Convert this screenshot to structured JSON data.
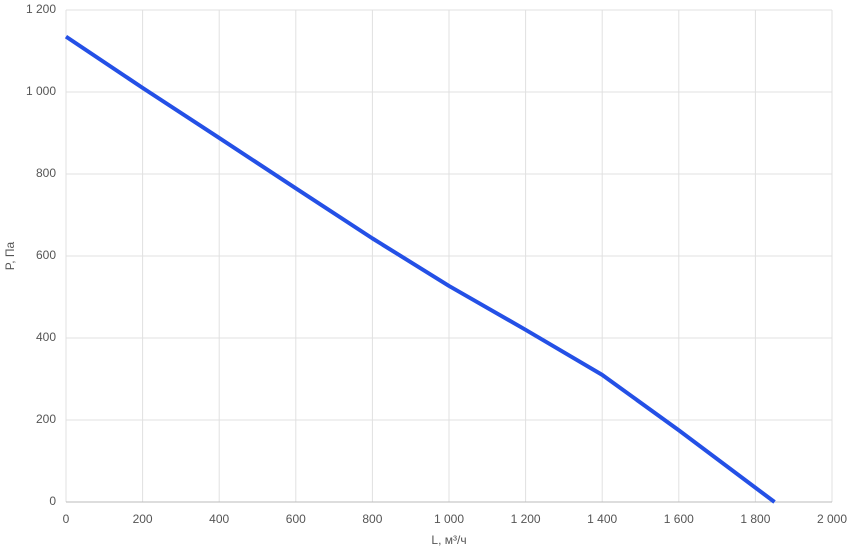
{
  "chart_data": {
    "type": "line",
    "x_label": "L, м³/ч",
    "y_label": "P, Па",
    "x": [
      0,
      200,
      400,
      600,
      800,
      1000,
      1200,
      1400,
      1600,
      1850
    ],
    "series": [
      {
        "name": "P",
        "color": "#2450e6",
        "values": [
          1135,
          1010,
          888,
          765,
          643,
          527,
          420,
          310,
          175,
          0
        ]
      }
    ],
    "xlim": [
      0,
      2000
    ],
    "xticks": [
      0,
      200,
      400,
      600,
      800,
      {
        "value": 1000,
        "label": "1 000"
      },
      {
        "value": 1200,
        "label": "1 200"
      },
      {
        "value": 1400,
        "label": "1 400"
      },
      {
        "value": 1600,
        "label": "1 600"
      },
      {
        "value": 1800,
        "label": "1 800"
      },
      {
        "value": 2000,
        "label": "2 000"
      }
    ],
    "ylim": [
      0,
      1200
    ],
    "yticks": [
      0,
      200,
      400,
      600,
      800,
      {
        "value": 1000,
        "label": "1 000"
      },
      {
        "value": 1200,
        "label": "1 200"
      }
    ],
    "grid": true
  }
}
